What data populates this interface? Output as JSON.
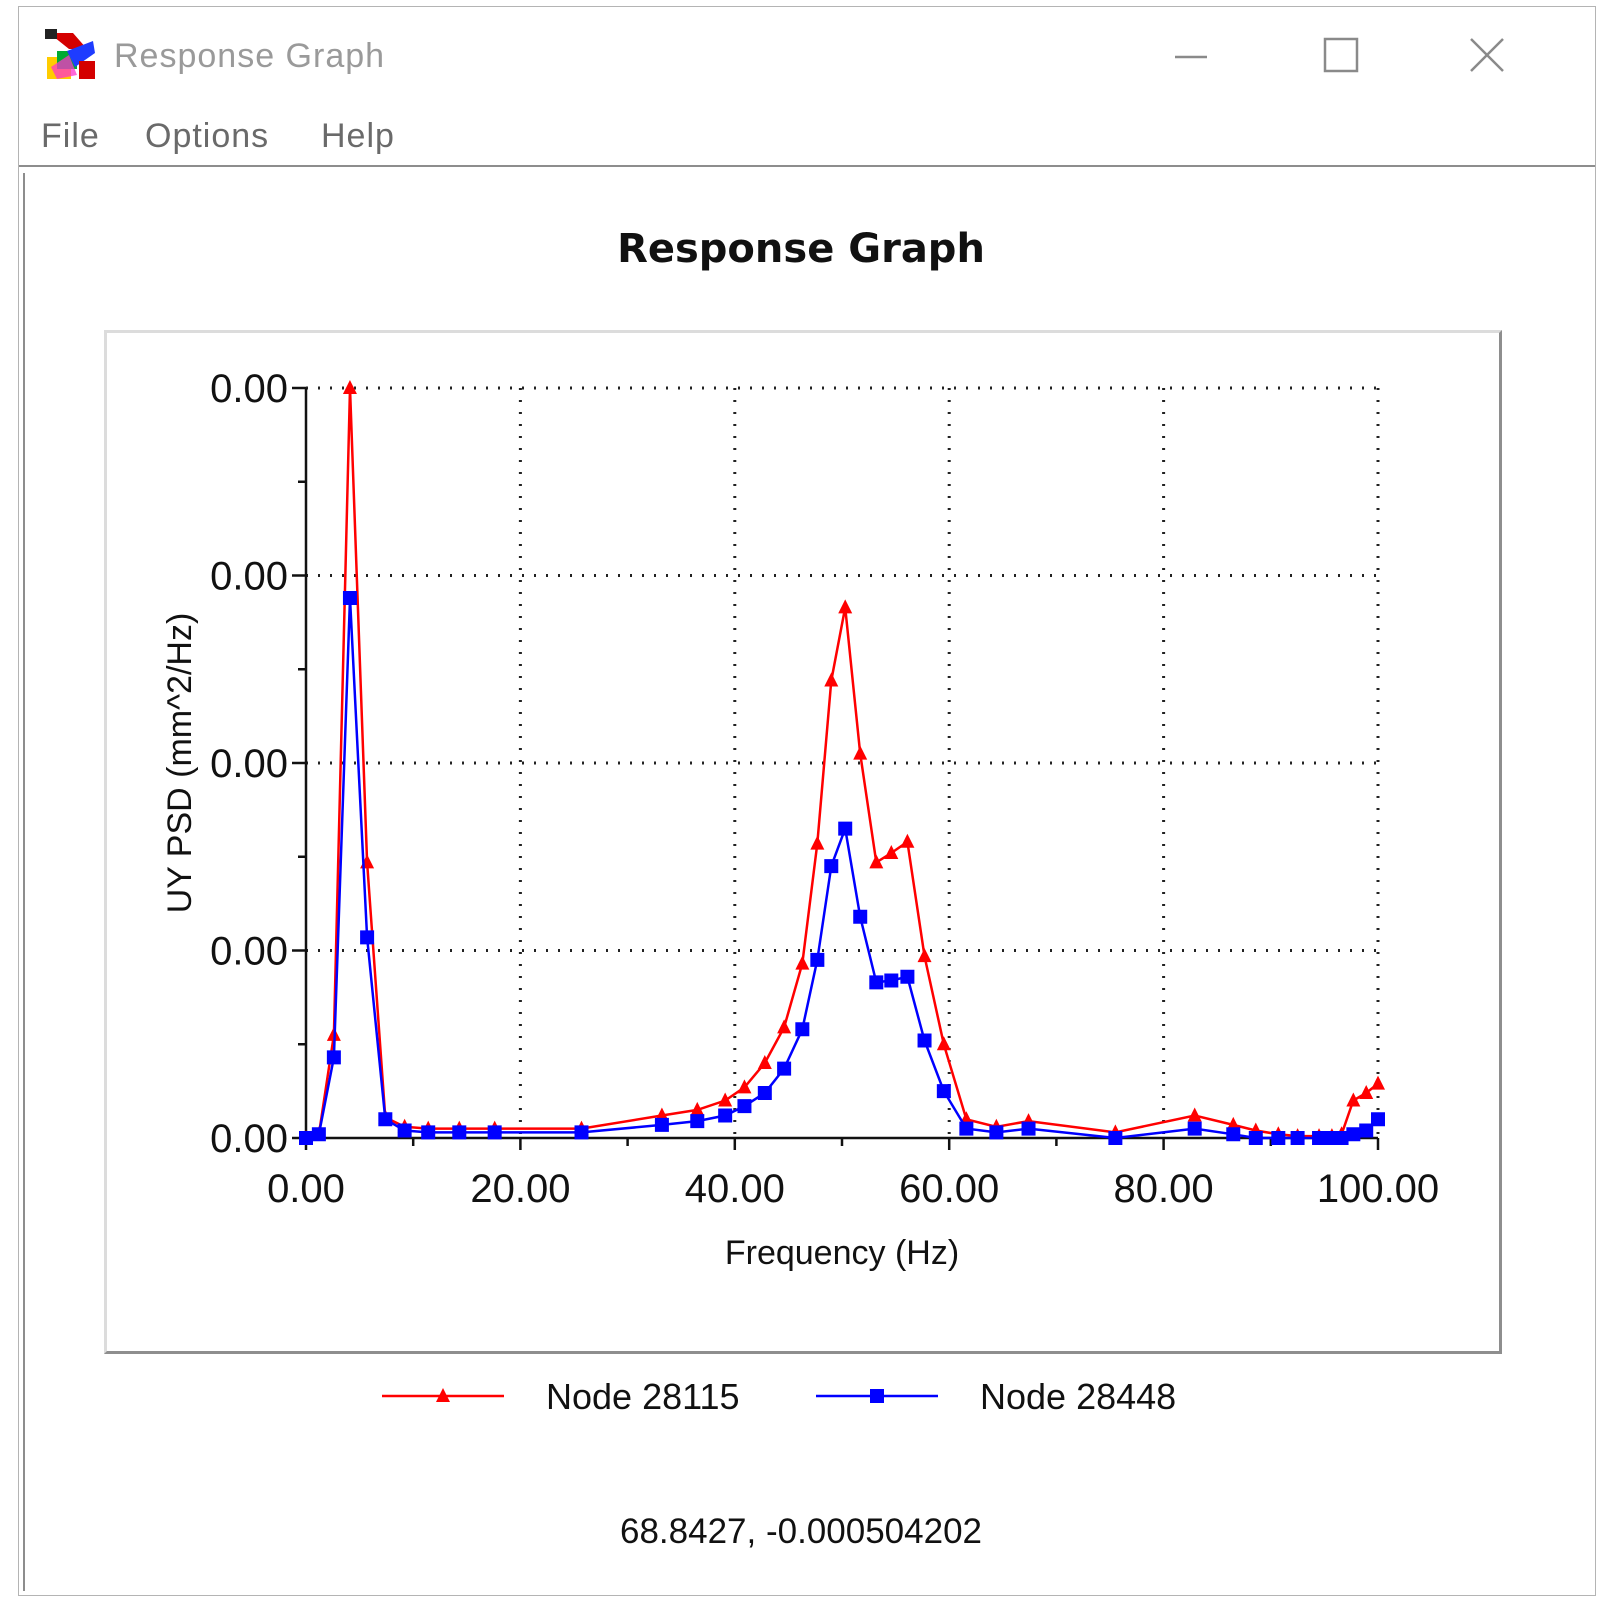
{
  "window": {
    "title": "Response Graph",
    "menu": [
      "File",
      "Options",
      "Help"
    ]
  },
  "chart_data": {
    "type": "line",
    "title": "Response Graph",
    "xlabel": "Frequency (Hz)",
    "ylabel": "UY PSD (mm^2/Hz)",
    "xlim": [
      0,
      100
    ],
    "ylim": [
      0,
      4
    ],
    "x_ticks": [
      "0.00",
      "20.00",
      "40.00",
      "60.00",
      "80.00",
      "100.00"
    ],
    "y_ticks": [
      "0.00",
      "0.00",
      "0.00",
      "0.00",
      "0.00"
    ],
    "grid": true,
    "legend_position": "bottom",
    "series": [
      {
        "name": "Node 28115",
        "color": "#ff0000",
        "marker": "triangle",
        "points": [
          [
            0,
            0
          ],
          [
            1.2,
            0.02
          ],
          [
            2.6,
            0.55
          ],
          [
            4.1,
            4.0
          ],
          [
            5.7,
            1.47
          ],
          [
            7.4,
            0.11
          ],
          [
            9.2,
            0.06
          ],
          [
            11.4,
            0.05
          ],
          [
            14.3,
            0.05
          ],
          [
            17.6,
            0.05
          ],
          [
            25.7,
            0.05
          ],
          [
            33.2,
            0.12
          ],
          [
            36.5,
            0.15
          ],
          [
            39.1,
            0.2
          ],
          [
            40.9,
            0.27
          ],
          [
            42.8,
            0.4
          ],
          [
            44.6,
            0.59
          ],
          [
            46.3,
            0.93
          ],
          [
            47.7,
            1.57
          ],
          [
            49.0,
            2.44
          ],
          [
            50.3,
            2.83
          ],
          [
            51.7,
            2.05
          ],
          [
            53.2,
            1.47
          ],
          [
            54.6,
            1.52
          ],
          [
            56.1,
            1.58
          ],
          [
            57.7,
            0.97
          ],
          [
            59.5,
            0.5
          ],
          [
            61.6,
            0.1
          ],
          [
            64.4,
            0.06
          ],
          [
            67.4,
            0.09
          ],
          [
            75.5,
            0.03
          ],
          [
            82.9,
            0.12
          ],
          [
            86.5,
            0.07
          ],
          [
            88.6,
            0.04
          ],
          [
            90.7,
            0.02
          ],
          [
            92.5,
            0.01
          ],
          [
            94.5,
            0.01
          ],
          [
            95.7,
            0.01
          ],
          [
            96.6,
            0.02
          ],
          [
            97.7,
            0.2
          ],
          [
            98.9,
            0.24
          ],
          [
            100,
            0.29
          ]
        ]
      },
      {
        "name": "Node 28448",
        "color": "#0000ff",
        "marker": "square",
        "points": [
          [
            0,
            0
          ],
          [
            1.2,
            0.02
          ],
          [
            2.6,
            0.43
          ],
          [
            4.1,
            2.88
          ],
          [
            5.7,
            1.07
          ],
          [
            7.4,
            0.1
          ],
          [
            9.2,
            0.04
          ],
          [
            11.4,
            0.03
          ],
          [
            14.3,
            0.03
          ],
          [
            17.6,
            0.03
          ],
          [
            25.7,
            0.03
          ],
          [
            33.2,
            0.07
          ],
          [
            36.5,
            0.09
          ],
          [
            39.1,
            0.12
          ],
          [
            40.9,
            0.17
          ],
          [
            42.8,
            0.24
          ],
          [
            44.6,
            0.37
          ],
          [
            46.3,
            0.58
          ],
          [
            47.7,
            0.95
          ],
          [
            49.0,
            1.45
          ],
          [
            50.3,
            1.65
          ],
          [
            51.7,
            1.18
          ],
          [
            53.2,
            0.83
          ],
          [
            54.6,
            0.84
          ],
          [
            56.1,
            0.86
          ],
          [
            57.7,
            0.52
          ],
          [
            59.5,
            0.25
          ],
          [
            61.6,
            0.05
          ],
          [
            64.4,
            0.03
          ],
          [
            67.4,
            0.05
          ],
          [
            75.5,
            0.0
          ],
          [
            82.9,
            0.05
          ],
          [
            86.5,
            0.02
          ],
          [
            88.6,
            0.0
          ],
          [
            90.7,
            0.0
          ],
          [
            92.5,
            0.0
          ],
          [
            94.5,
            0.0
          ],
          [
            95.7,
            0.0
          ],
          [
            96.6,
            0.0
          ],
          [
            97.7,
            0.02
          ],
          [
            98.9,
            0.04
          ],
          [
            100,
            0.1
          ]
        ]
      }
    ]
  },
  "status": {
    "coordinates": "68.8427, -0.000504202"
  }
}
